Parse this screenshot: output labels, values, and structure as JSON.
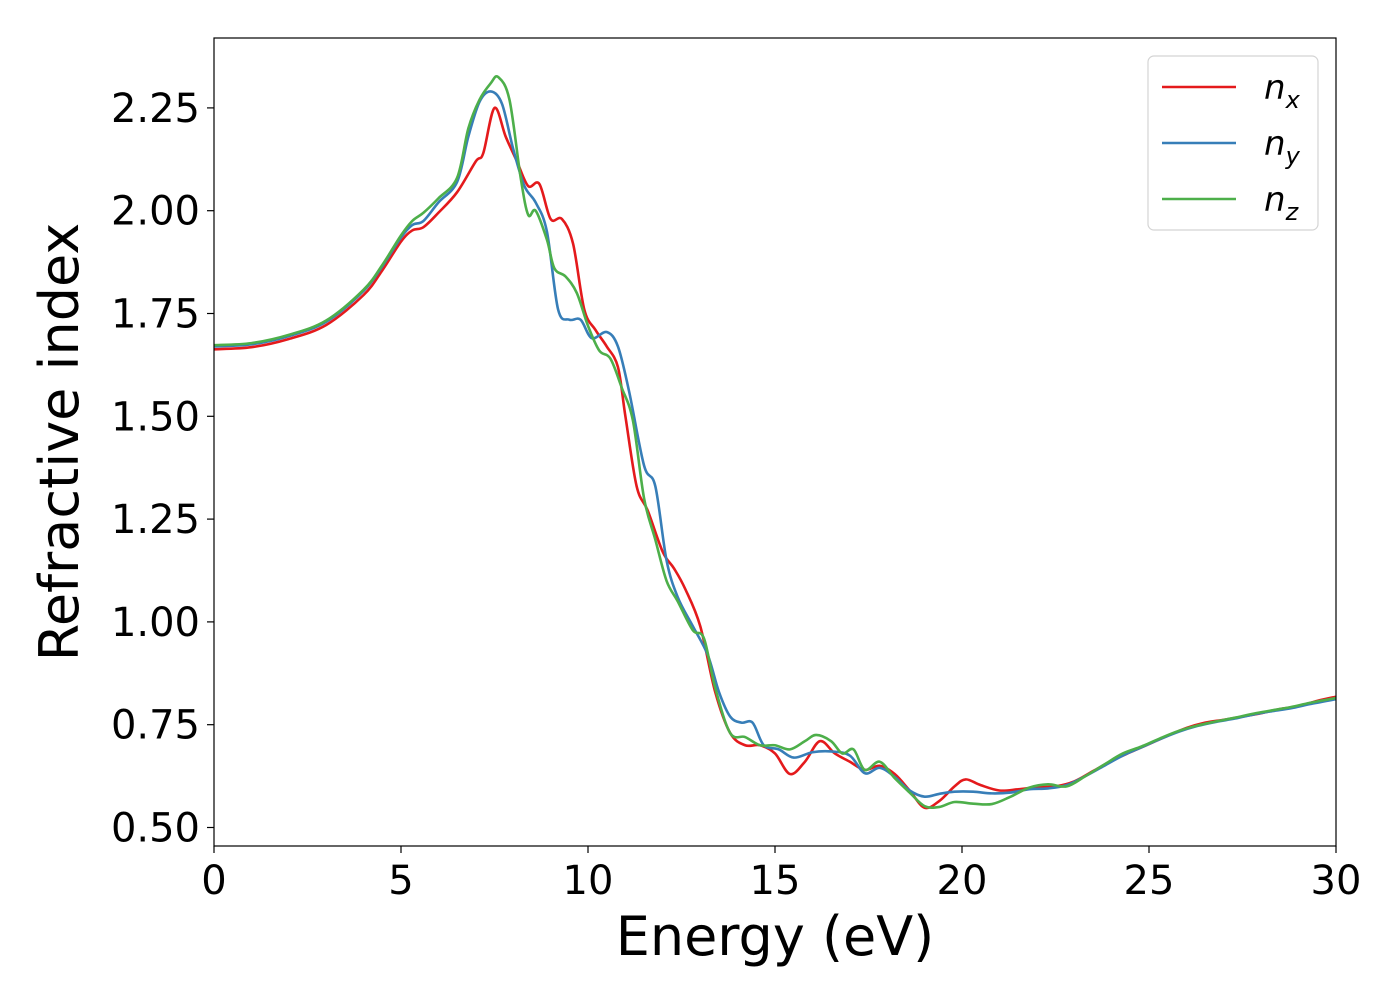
{
  "chart_data": {
    "type": "line",
    "title": "",
    "xlabel": "Energy (eV)",
    "ylabel": "Refractive index",
    "xlim": [
      0,
      30
    ],
    "ylim": [
      0.455,
      2.42
    ],
    "xticks": [
      0,
      5,
      10,
      15,
      20,
      25,
      30
    ],
    "yticks": [
      0.5,
      0.75,
      1.0,
      1.25,
      1.5,
      1.75,
      2.0,
      2.25
    ],
    "xtick_labels": [
      "0",
      "5",
      "10",
      "15",
      "20",
      "25",
      "30"
    ],
    "ytick_labels": [
      "0.50",
      "0.75",
      "1.00",
      "1.25",
      "1.50",
      "1.75",
      "2.00",
      "2.25"
    ],
    "grid": false,
    "legend_position": "top-right",
    "series": [
      {
        "key": "n_x",
        "name": "n",
        "subscript": "x",
        "color": "#e41a1c",
        "points": [
          [
            0,
            1.663
          ],
          [
            1,
            1.668
          ],
          [
            2,
            1.688
          ],
          [
            3,
            1.722
          ],
          [
            4,
            1.795
          ],
          [
            4.5,
            1.855
          ],
          [
            5,
            1.925
          ],
          [
            5.3,
            1.952
          ],
          [
            5.6,
            1.96
          ],
          [
            6,
            1.995
          ],
          [
            6.5,
            2.045
          ],
          [
            7,
            2.12
          ],
          [
            7.2,
            2.14
          ],
          [
            7.5,
            2.25
          ],
          [
            7.8,
            2.18
          ],
          [
            8.1,
            2.12
          ],
          [
            8.4,
            2.06
          ],
          [
            8.7,
            2.065
          ],
          [
            9,
            1.98
          ],
          [
            9.3,
            1.98
          ],
          [
            9.6,
            1.92
          ],
          [
            9.9,
            1.76
          ],
          [
            10.2,
            1.71
          ],
          [
            10.5,
            1.67
          ],
          [
            10.8,
            1.62
          ],
          [
            11,
            1.5
          ],
          [
            11.3,
            1.33
          ],
          [
            11.6,
            1.27
          ],
          [
            12,
            1.17
          ],
          [
            12.3,
            1.13
          ],
          [
            12.6,
            1.08
          ],
          [
            13,
            0.99
          ],
          [
            13.4,
            0.83
          ],
          [
            13.8,
            0.73
          ],
          [
            14.2,
            0.7
          ],
          [
            14.6,
            0.7
          ],
          [
            15,
            0.68
          ],
          [
            15.4,
            0.63
          ],
          [
            15.8,
            0.66
          ],
          [
            16.2,
            0.71
          ],
          [
            16.6,
            0.68
          ],
          [
            17,
            0.66
          ],
          [
            17.4,
            0.64
          ],
          [
            17.8,
            0.65
          ],
          [
            18.2,
            0.63
          ],
          [
            18.6,
            0.59
          ],
          [
            19,
            0.548
          ],
          [
            19.4,
            0.565
          ],
          [
            19.8,
            0.6
          ],
          [
            20.1,
            0.617
          ],
          [
            20.5,
            0.603
          ],
          [
            21,
            0.59
          ],
          [
            21.5,
            0.593
          ],
          [
            22,
            0.598
          ],
          [
            22.5,
            0.6
          ],
          [
            23,
            0.612
          ],
          [
            23.5,
            0.637
          ],
          [
            24,
            0.662
          ],
          [
            24.5,
            0.683
          ],
          [
            25,
            0.703
          ],
          [
            25.5,
            0.723
          ],
          [
            26,
            0.742
          ],
          [
            26.5,
            0.755
          ],
          [
            27,
            0.762
          ],
          [
            27.5,
            0.77
          ],
          [
            28,
            0.778
          ],
          [
            28.5,
            0.788
          ],
          [
            29,
            0.795
          ],
          [
            29.5,
            0.808
          ],
          [
            30,
            0.818
          ]
        ]
      },
      {
        "key": "n_y",
        "name": "n",
        "subscript": "y",
        "color": "#377eb8",
        "points": [
          [
            0,
            1.67
          ],
          [
            1,
            1.675
          ],
          [
            2,
            1.695
          ],
          [
            3,
            1.73
          ],
          [
            4,
            1.805
          ],
          [
            4.5,
            1.865
          ],
          [
            5,
            1.935
          ],
          [
            5.3,
            1.965
          ],
          [
            5.6,
            1.975
          ],
          [
            6,
            2.02
          ],
          [
            6.5,
            2.07
          ],
          [
            6.8,
            2.18
          ],
          [
            7.1,
            2.265
          ],
          [
            7.4,
            2.29
          ],
          [
            7.7,
            2.26
          ],
          [
            8,
            2.15
          ],
          [
            8.3,
            2.06
          ],
          [
            8.6,
            2.02
          ],
          [
            8.9,
            1.95
          ],
          [
            9.2,
            1.76
          ],
          [
            9.5,
            1.735
          ],
          [
            9.8,
            1.735
          ],
          [
            10.1,
            1.69
          ],
          [
            10.5,
            1.705
          ],
          [
            10.8,
            1.67
          ],
          [
            11.1,
            1.56
          ],
          [
            11.5,
            1.38
          ],
          [
            11.8,
            1.33
          ],
          [
            12.1,
            1.15
          ],
          [
            12.4,
            1.06
          ],
          [
            12.8,
            0.99
          ],
          [
            13.2,
            0.92
          ],
          [
            13.5,
            0.83
          ],
          [
            13.8,
            0.77
          ],
          [
            14.1,
            0.755
          ],
          [
            14.4,
            0.755
          ],
          [
            14.7,
            0.7
          ],
          [
            15.1,
            0.69
          ],
          [
            15.5,
            0.67
          ],
          [
            16,
            0.683
          ],
          [
            16.5,
            0.685
          ],
          [
            17,
            0.675
          ],
          [
            17.4,
            0.632
          ],
          [
            17.8,
            0.645
          ],
          [
            18.2,
            0.623
          ],
          [
            18.6,
            0.59
          ],
          [
            19,
            0.575
          ],
          [
            19.4,
            0.582
          ],
          [
            19.8,
            0.587
          ],
          [
            20.3,
            0.587
          ],
          [
            20.8,
            0.583
          ],
          [
            21.3,
            0.585
          ],
          [
            21.8,
            0.593
          ],
          [
            22.3,
            0.595
          ],
          [
            22.8,
            0.603
          ],
          [
            23.3,
            0.625
          ],
          [
            23.8,
            0.65
          ],
          [
            24.3,
            0.675
          ],
          [
            24.8,
            0.695
          ],
          [
            25.3,
            0.715
          ],
          [
            25.8,
            0.733
          ],
          [
            26.3,
            0.747
          ],
          [
            26.8,
            0.757
          ],
          [
            27.3,
            0.765
          ],
          [
            27.8,
            0.775
          ],
          [
            28.3,
            0.783
          ],
          [
            28.8,
            0.79
          ],
          [
            29.3,
            0.8
          ],
          [
            30,
            0.812
          ]
        ]
      },
      {
        "key": "n_z",
        "name": "n",
        "subscript": "z",
        "color": "#4daf4a",
        "points": [
          [
            0,
            1.673
          ],
          [
            1,
            1.678
          ],
          [
            2,
            1.698
          ],
          [
            3,
            1.733
          ],
          [
            4,
            1.808
          ],
          [
            4.5,
            1.868
          ],
          [
            5,
            1.94
          ],
          [
            5.3,
            1.975
          ],
          [
            5.6,
            1.995
          ],
          [
            6,
            2.03
          ],
          [
            6.5,
            2.08
          ],
          [
            6.8,
            2.2
          ],
          [
            7.1,
            2.27
          ],
          [
            7.4,
            2.31
          ],
          [
            7.6,
            2.325
          ],
          [
            7.9,
            2.27
          ],
          [
            8.2,
            2.08
          ],
          [
            8.4,
            1.99
          ],
          [
            8.6,
            2.0
          ],
          [
            8.9,
            1.93
          ],
          [
            9.1,
            1.86
          ],
          [
            9.4,
            1.84
          ],
          [
            9.7,
            1.8
          ],
          [
            10,
            1.72
          ],
          [
            10.3,
            1.66
          ],
          [
            10.6,
            1.64
          ],
          [
            10.9,
            1.57
          ],
          [
            11.2,
            1.49
          ],
          [
            11.5,
            1.3
          ],
          [
            11.8,
            1.2
          ],
          [
            12.1,
            1.1
          ],
          [
            12.4,
            1.05
          ],
          [
            12.8,
            0.98
          ],
          [
            13.1,
            0.96
          ],
          [
            13.4,
            0.84
          ],
          [
            13.8,
            0.73
          ],
          [
            14.2,
            0.72
          ],
          [
            14.6,
            0.7
          ],
          [
            15,
            0.7
          ],
          [
            15.4,
            0.69
          ],
          [
            15.8,
            0.71
          ],
          [
            16.1,
            0.725
          ],
          [
            16.5,
            0.71
          ],
          [
            16.8,
            0.68
          ],
          [
            17.1,
            0.69
          ],
          [
            17.4,
            0.64
          ],
          [
            17.8,
            0.66
          ],
          [
            18.2,
            0.62
          ],
          [
            18.6,
            0.585
          ],
          [
            19,
            0.552
          ],
          [
            19.4,
            0.55
          ],
          [
            19.8,
            0.562
          ],
          [
            20.3,
            0.558
          ],
          [
            20.8,
            0.557
          ],
          [
            21.3,
            0.575
          ],
          [
            21.8,
            0.597
          ],
          [
            22.3,
            0.605
          ],
          [
            22.8,
            0.6
          ],
          [
            23.3,
            0.625
          ],
          [
            23.8,
            0.653
          ],
          [
            24.3,
            0.68
          ],
          [
            24.8,
            0.697
          ],
          [
            25.3,
            0.717
          ],
          [
            25.8,
            0.735
          ],
          [
            26.3,
            0.748
          ],
          [
            26.8,
            0.758
          ],
          [
            27.3,
            0.767
          ],
          [
            27.8,
            0.777
          ],
          [
            28.3,
            0.785
          ],
          [
            28.8,
            0.793
          ],
          [
            29.3,
            0.803
          ],
          [
            30,
            0.815
          ]
        ]
      }
    ]
  }
}
